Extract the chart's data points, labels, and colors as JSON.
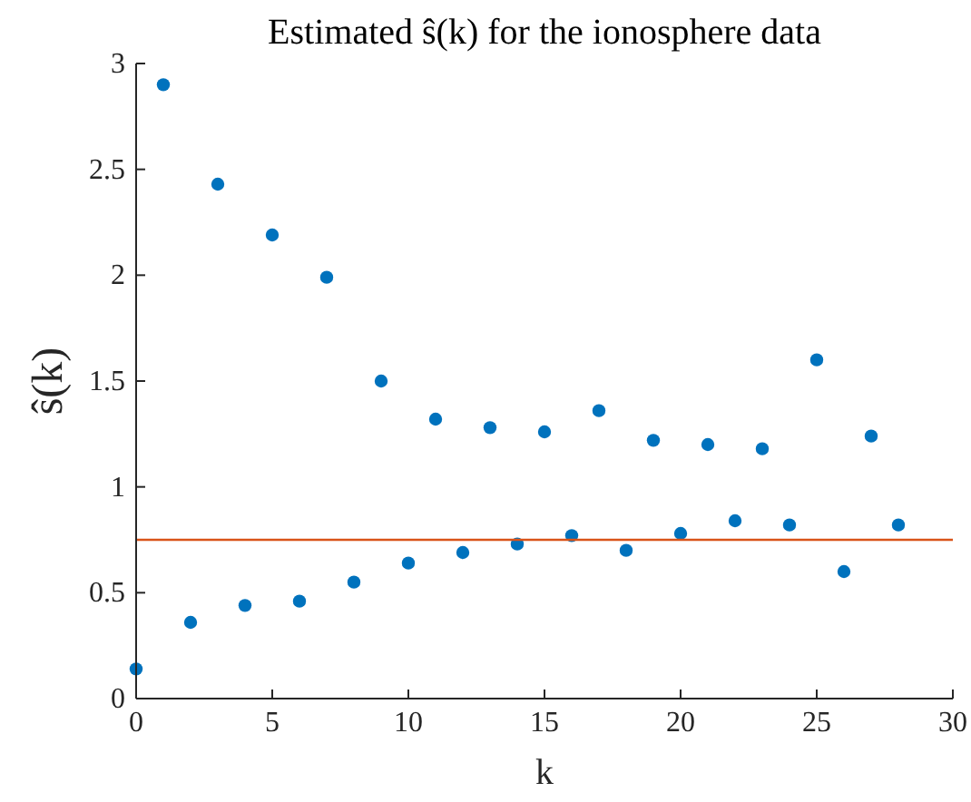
{
  "chart_data": {
    "type": "scatter",
    "title": "Estimated ŝ(k) for the ionosphere data",
    "xlabel": "k",
    "ylabel": "ŝ(k)",
    "x": [
      0,
      1,
      2,
      3,
      4,
      5,
      6,
      7,
      8,
      9,
      10,
      11,
      12,
      13,
      14,
      15,
      16,
      17,
      18,
      19,
      20,
      21,
      22,
      23,
      24,
      25,
      26,
      27,
      28
    ],
    "series": [
      {
        "color": "#0072bd",
        "values": [
          0.14,
          2.9,
          0.36,
          2.43,
          0.44,
          2.19,
          0.46,
          1.99,
          0.55,
          1.5,
          0.64,
          1.32,
          0.69,
          1.28,
          0.73,
          1.26,
          0.77,
          1.36,
          0.7,
          1.22,
          0.78,
          1.2,
          0.84,
          1.18,
          0.82,
          1.6,
          0.6,
          1.24,
          0.82
        ]
      }
    ],
    "xlim": [
      0,
      30
    ],
    "xticks": [
      0,
      5,
      10,
      15,
      20,
      25,
      30
    ],
    "ylim": [
      0,
      3
    ],
    "yticks": [
      0,
      0.5,
      1,
      1.5,
      2,
      2.5,
      3
    ],
    "ref_lines": [
      {
        "axis": "y",
        "value": 0.75,
        "color": "#d95319"
      }
    ],
    "marker": "circle"
  }
}
